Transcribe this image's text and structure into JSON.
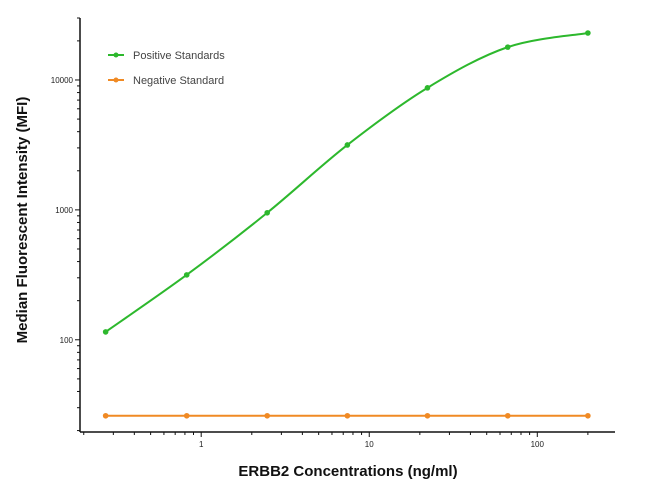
{
  "chart_data": {
    "type": "line",
    "title": "",
    "xlabel": "ERBB2 Concentrations (ng/ml)",
    "ylabel": "Median  Fluorescent Intensity  (MFI)",
    "xscale": "log",
    "yscale": "log",
    "xlim": [
      0.19,
      290
    ],
    "ylim": [
      19.5,
      30000
    ],
    "x_ticks": [
      {
        "value": 1,
        "label": "1"
      },
      {
        "value": 10,
        "label": "10"
      },
      {
        "value": 100,
        "label": "100"
      }
    ],
    "y_ticks": [
      {
        "value": 100,
        "label": "100"
      },
      {
        "value": 1000,
        "label": "1000"
      },
      {
        "value": 10000,
        "label": "10000"
      }
    ],
    "grid": false,
    "legend_position": "top-left",
    "x": [
      0.27,
      0.82,
      2.47,
      7.41,
      22.2,
      66.7,
      200
    ],
    "series": [
      {
        "name": "Positive Standards",
        "color": "#2db82d",
        "values": [
          115,
          316,
          950,
          3160,
          8700,
          17900,
          23000
        ]
      },
      {
        "name": "Negative Standard",
        "color": "#f08a24",
        "values": [
          26,
          26,
          26,
          26,
          26,
          26,
          26
        ]
      }
    ]
  }
}
